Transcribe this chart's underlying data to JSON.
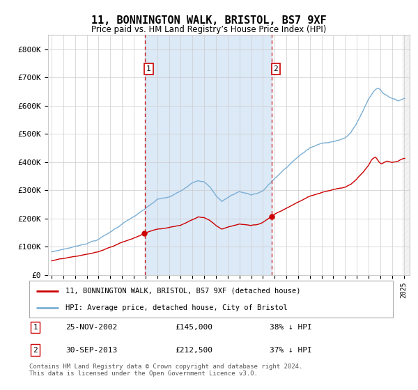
{
  "title": "11, BONNINGTON WALK, BRISTOL, BS7 9XF",
  "subtitle": "Price paid vs. HM Land Registry’s House Price Index (HPI)",
  "hpi_label": "HPI: Average price, detached house, City of Bristol",
  "property_label": "11, BONNINGTON WALK, BRISTOL, BS7 9XF (detached house)",
  "ylim": [
    0,
    850000
  ],
  "yticks": [
    0,
    100000,
    200000,
    300000,
    400000,
    500000,
    600000,
    700000,
    800000
  ],
  "ytick_labels": [
    "£0",
    "£100K",
    "£200K",
    "£300K",
    "£400K",
    "£500K",
    "£600K",
    "£700K",
    "£800K"
  ],
  "hpi_color": "#7bafd4",
  "property_color": "#cc0000",
  "dashed_color": "#cc0000",
  "shading_color": "#dce9f7",
  "purchase1_year": 2002.92,
  "purchase1_price": 145000,
  "purchase1_date": "25-NOV-2002",
  "purchase1_label": "£145,000",
  "purchase1_pct": "38% ↓ HPI",
  "purchase2_year": 2013.75,
  "purchase2_price": 212500,
  "purchase2_date": "30-SEP-2013",
  "purchase2_label": "£212,500",
  "purchase2_pct": "37% ↓ HPI",
  "footnote": "Contains HM Land Registry data © Crown copyright and database right 2024.\nThis data is licensed under the Open Government Licence v3.0.",
  "xlim_start": 1994.7,
  "xlim_end": 2025.5
}
